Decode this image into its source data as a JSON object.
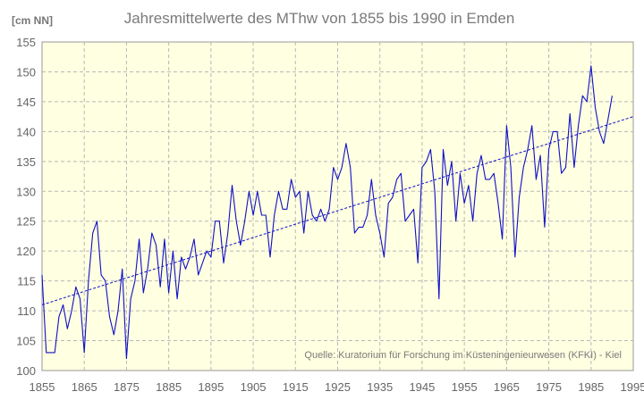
{
  "chart_data": {
    "type": "line",
    "title": "Jahresmittelwerte des MThw von 1855 bis 1990 in Emden",
    "ylabel": "[cm NN]",
    "xlabel": "",
    "xlim": [
      1855,
      1995
    ],
    "ylim": [
      100,
      155
    ],
    "x_ticks": [
      1855,
      1865,
      1875,
      1885,
      1895,
      1905,
      1915,
      1925,
      1935,
      1945,
      1955,
      1965,
      1975,
      1985,
      1995
    ],
    "y_ticks": [
      100,
      105,
      110,
      115,
      120,
      125,
      130,
      135,
      140,
      145,
      150,
      155
    ],
    "grid": true,
    "annotation": "Quelle: Kuratorium für Forschung im Küsteningenieurwesen (KFKI) - Kiel",
    "colors": {
      "series": "#1010c8",
      "trend": "#1010c8",
      "plot_background": "#ffffe1"
    },
    "series": [
      {
        "x": [
          1855,
          1856,
          1857,
          1858,
          1859,
          1860,
          1861,
          1862,
          1863,
          1864,
          1865,
          1866,
          1867,
          1868,
          1869,
          1870,
          1871,
          1872,
          1873,
          1874,
          1875,
          1876,
          1877,
          1878,
          1879,
          1880,
          1881,
          1882,
          1883,
          1884,
          1885,
          1886,
          1887,
          1888,
          1889,
          1890,
          1891,
          1892,
          1893,
          1894,
          1895,
          1896,
          1897,
          1898,
          1899,
          1900,
          1901,
          1902,
          1903,
          1904,
          1905,
          1906,
          1907,
          1908,
          1909,
          1910,
          1911,
          1912,
          1913,
          1914,
          1915,
          1916,
          1917,
          1918,
          1919,
          1920,
          1921,
          1922,
          1923,
          1924,
          1925,
          1926,
          1927,
          1928,
          1929,
          1930,
          1931,
          1932,
          1933,
          1934,
          1935,
          1936,
          1937,
          1938,
          1939,
          1940,
          1941,
          1942,
          1943,
          1944,
          1945,
          1946,
          1947,
          1948,
          1949,
          1950,
          1951,
          1952,
          1953,
          1954,
          1955,
          1956,
          1957,
          1958,
          1959,
          1960,
          1961,
          1962,
          1963,
          1964,
          1965,
          1966,
          1967,
          1968,
          1969,
          1970,
          1971,
          1972,
          1973,
          1974,
          1975,
          1976,
          1977,
          1978,
          1979,
          1980,
          1981,
          1982,
          1983,
          1984,
          1985,
          1986,
          1987,
          1988,
          1989,
          1990
        ],
        "values": [
          116,
          103,
          103,
          103,
          109,
          111,
          107,
          110,
          114,
          112,
          103,
          115,
          123,
          125,
          116,
          115,
          109,
          106,
          110,
          117,
          102,
          112,
          115,
          122,
          113,
          117,
          123,
          121,
          114,
          122,
          113,
          120,
          112,
          119,
          117,
          119,
          122,
          116,
          118,
          120,
          119,
          125,
          125,
          118,
          123,
          131,
          125,
          121,
          125,
          130,
          126,
          130,
          126,
          126,
          119,
          126,
          130,
          127,
          127,
          132,
          129,
          130,
          123,
          130,
          126,
          125,
          127,
          125,
          127,
          134,
          132,
          134,
          138,
          134,
          123,
          124,
          124,
          126,
          132,
          126,
          123,
          119,
          128,
          129,
          132,
          133,
          125,
          126,
          127,
          118,
          134,
          135,
          137,
          130,
          112,
          137,
          131,
          135,
          125,
          133,
          128,
          131,
          125,
          133,
          136,
          132,
          132,
          133,
          128,
          122,
          141,
          134,
          119,
          129,
          134,
          137,
          141,
          132,
          136,
          124,
          137,
          140,
          140,
          133,
          134,
          143,
          134,
          141,
          146,
          145,
          151,
          144,
          140,
          138,
          142,
          146
        ]
      }
    ],
    "trend": {
      "x": [
        1855,
        1995
      ],
      "values": [
        111,
        142.5
      ]
    }
  }
}
